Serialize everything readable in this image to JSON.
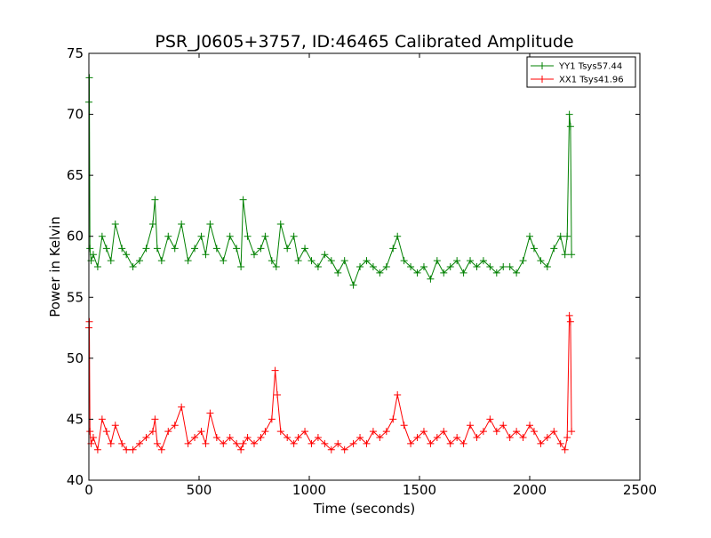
{
  "chart_data": {
    "type": "line",
    "title": "PSR_J0605+3757, ID:46465 Calibrated Amplitude",
    "xlabel": "Time (seconds)",
    "ylabel": "Power in Kelvin",
    "xlim": [
      0,
      2500
    ],
    "ylim": [
      40,
      75
    ],
    "xticks": [
      0,
      500,
      1000,
      1500,
      2000,
      2500
    ],
    "yticks": [
      40,
      45,
      50,
      55,
      60,
      65,
      70,
      75
    ],
    "grid": false,
    "legend_position": "top-right",
    "marker": "+",
    "series": [
      {
        "name": "YY1 Tsys57.44",
        "color": "#008000",
        "x": [
          0,
          2,
          5,
          10,
          20,
          40,
          60,
          80,
          100,
          120,
          150,
          170,
          200,
          230,
          260,
          290,
          300,
          310,
          330,
          360,
          390,
          420,
          450,
          480,
          510,
          530,
          550,
          580,
          610,
          640,
          670,
          690,
          700,
          720,
          750,
          780,
          800,
          830,
          850,
          870,
          900,
          930,
          950,
          980,
          1010,
          1040,
          1070,
          1100,
          1130,
          1160,
          1200,
          1230,
          1260,
          1290,
          1320,
          1350,
          1380,
          1400,
          1430,
          1460,
          1490,
          1520,
          1550,
          1580,
          1610,
          1640,
          1670,
          1700,
          1730,
          1760,
          1790,
          1820,
          1850,
          1880,
          1910,
          1940,
          1970,
          2000,
          2020,
          2050,
          2080,
          2110,
          2140,
          2160,
          2170,
          2180,
          2185,
          2190
        ],
        "y": [
          71,
          73,
          59,
          58,
          58.5,
          57.5,
          60,
          59,
          58,
          61,
          59,
          58.5,
          57.5,
          58,
          59,
          61,
          63,
          59,
          58,
          60,
          59,
          61,
          58,
          59,
          60,
          58.5,
          61,
          59,
          58,
          60,
          59,
          57.5,
          63,
          60,
          58.5,
          59,
          60,
          58,
          57.5,
          61,
          59,
          60,
          58,
          59,
          58,
          57.5,
          58.5,
          58,
          57,
          58,
          56,
          57.5,
          58,
          57.5,
          57,
          57.5,
          59,
          60,
          58,
          57.5,
          57,
          57.5,
          56.5,
          58,
          57,
          57.5,
          58,
          57,
          58,
          57.5,
          58,
          57.5,
          57,
          57.5,
          57.5,
          57,
          58,
          60,
          59,
          58,
          57.5,
          59,
          60,
          58.5,
          60,
          70,
          69,
          58.5
        ]
      },
      {
        "name": "XX1 Tsys41.96",
        "color": "#ff0000",
        "x": [
          0,
          2,
          5,
          10,
          20,
          40,
          60,
          80,
          100,
          120,
          150,
          170,
          200,
          230,
          260,
          290,
          300,
          310,
          330,
          360,
          390,
          420,
          450,
          480,
          510,
          530,
          550,
          580,
          610,
          640,
          670,
          690,
          700,
          720,
          750,
          780,
          800,
          830,
          845,
          855,
          870,
          900,
          930,
          950,
          980,
          1010,
          1040,
          1070,
          1100,
          1130,
          1160,
          1200,
          1230,
          1260,
          1290,
          1320,
          1350,
          1380,
          1400,
          1430,
          1460,
          1490,
          1520,
          1550,
          1580,
          1610,
          1640,
          1670,
          1700,
          1730,
          1760,
          1790,
          1820,
          1850,
          1880,
          1910,
          1940,
          1970,
          2000,
          2020,
          2050,
          2080,
          2110,
          2140,
          2160,
          2170,
          2180,
          2185,
          2190
        ],
        "y": [
          52.5,
          53,
          44,
          43,
          43.5,
          42.5,
          45,
          44,
          43,
          44.5,
          43,
          42.5,
          42.5,
          43,
          43.5,
          44,
          45,
          43,
          42.5,
          44,
          44.5,
          46,
          43,
          43.5,
          44,
          43,
          45.5,
          43.5,
          43,
          43.5,
          43,
          42.5,
          43,
          43.5,
          43,
          43.5,
          44,
          45,
          49,
          47,
          44,
          43.5,
          43,
          43.5,
          44,
          43,
          43.5,
          43,
          42.5,
          43,
          42.5,
          43,
          43.5,
          43,
          44,
          43.5,
          44,
          45,
          47,
          44.5,
          43,
          43.5,
          44,
          43,
          43.5,
          44,
          43,
          43.5,
          43,
          44.5,
          43.5,
          44,
          45,
          44,
          44.5,
          43.5,
          44,
          43.5,
          44.5,
          44,
          43,
          43.5,
          44,
          43,
          42.5,
          43.5,
          53.5,
          53,
          44
        ]
      }
    ]
  }
}
